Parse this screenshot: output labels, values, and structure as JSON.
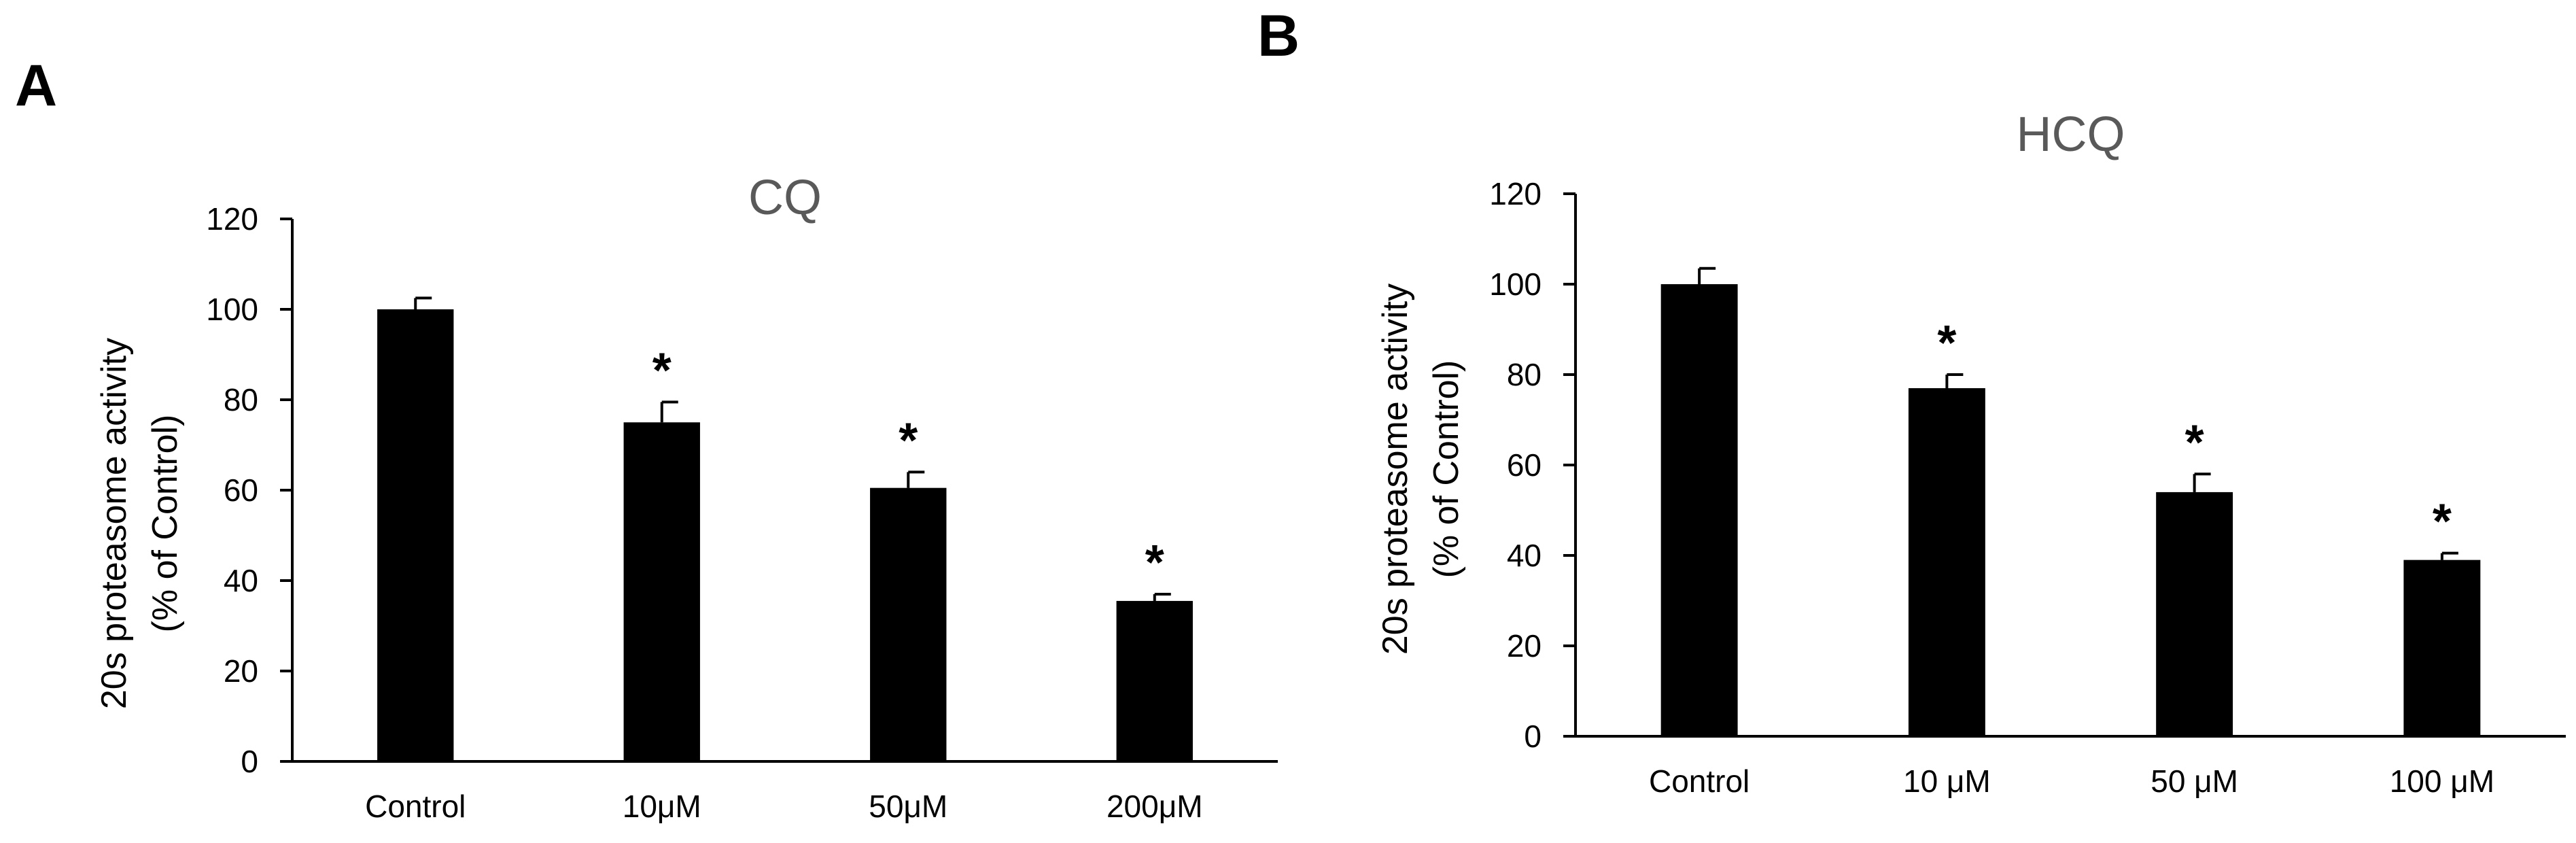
{
  "panels": [
    {
      "letter": "A"
    },
    {
      "letter": "B"
    }
  ],
  "chart_data": [
    {
      "type": "bar",
      "panel": "A",
      "title": "CQ",
      "categories": [
        "Control",
        "10μM",
        "50μM",
        "200μM"
      ],
      "values": [
        100,
        75,
        60.5,
        35.5
      ],
      "errors": [
        2.5,
        4.5,
        3.5,
        1.5
      ],
      "significance": [
        "",
        "*",
        "*",
        "*"
      ],
      "xlabel": "",
      "ylabel_line1": "20s proteasome activity",
      "ylabel_line2": "(% of Control)",
      "ylim": [
        0,
        120
      ],
      "yticks": [
        0,
        20,
        40,
        60,
        80,
        100,
        120
      ],
      "bar_color": "#000000",
      "title_color": "#595959",
      "grid": false
    },
    {
      "type": "bar",
      "panel": "B",
      "title": "HCQ",
      "categories": [
        "Control",
        "10 μM",
        "50 μM",
        "100 μM"
      ],
      "values": [
        100,
        77,
        54,
        39
      ],
      "errors": [
        3.5,
        3.0,
        4.0,
        1.5
      ],
      "significance": [
        "",
        "*",
        "*",
        "*"
      ],
      "xlabel": "",
      "ylabel_line1": "20s proteasome activity",
      "ylabel_line2": "(% of Control)",
      "ylim": [
        0,
        120
      ],
      "yticks": [
        0,
        20,
        40,
        60,
        80,
        100,
        120
      ],
      "bar_color": "#000000",
      "title_color": "#595959",
      "grid": false
    }
  ]
}
